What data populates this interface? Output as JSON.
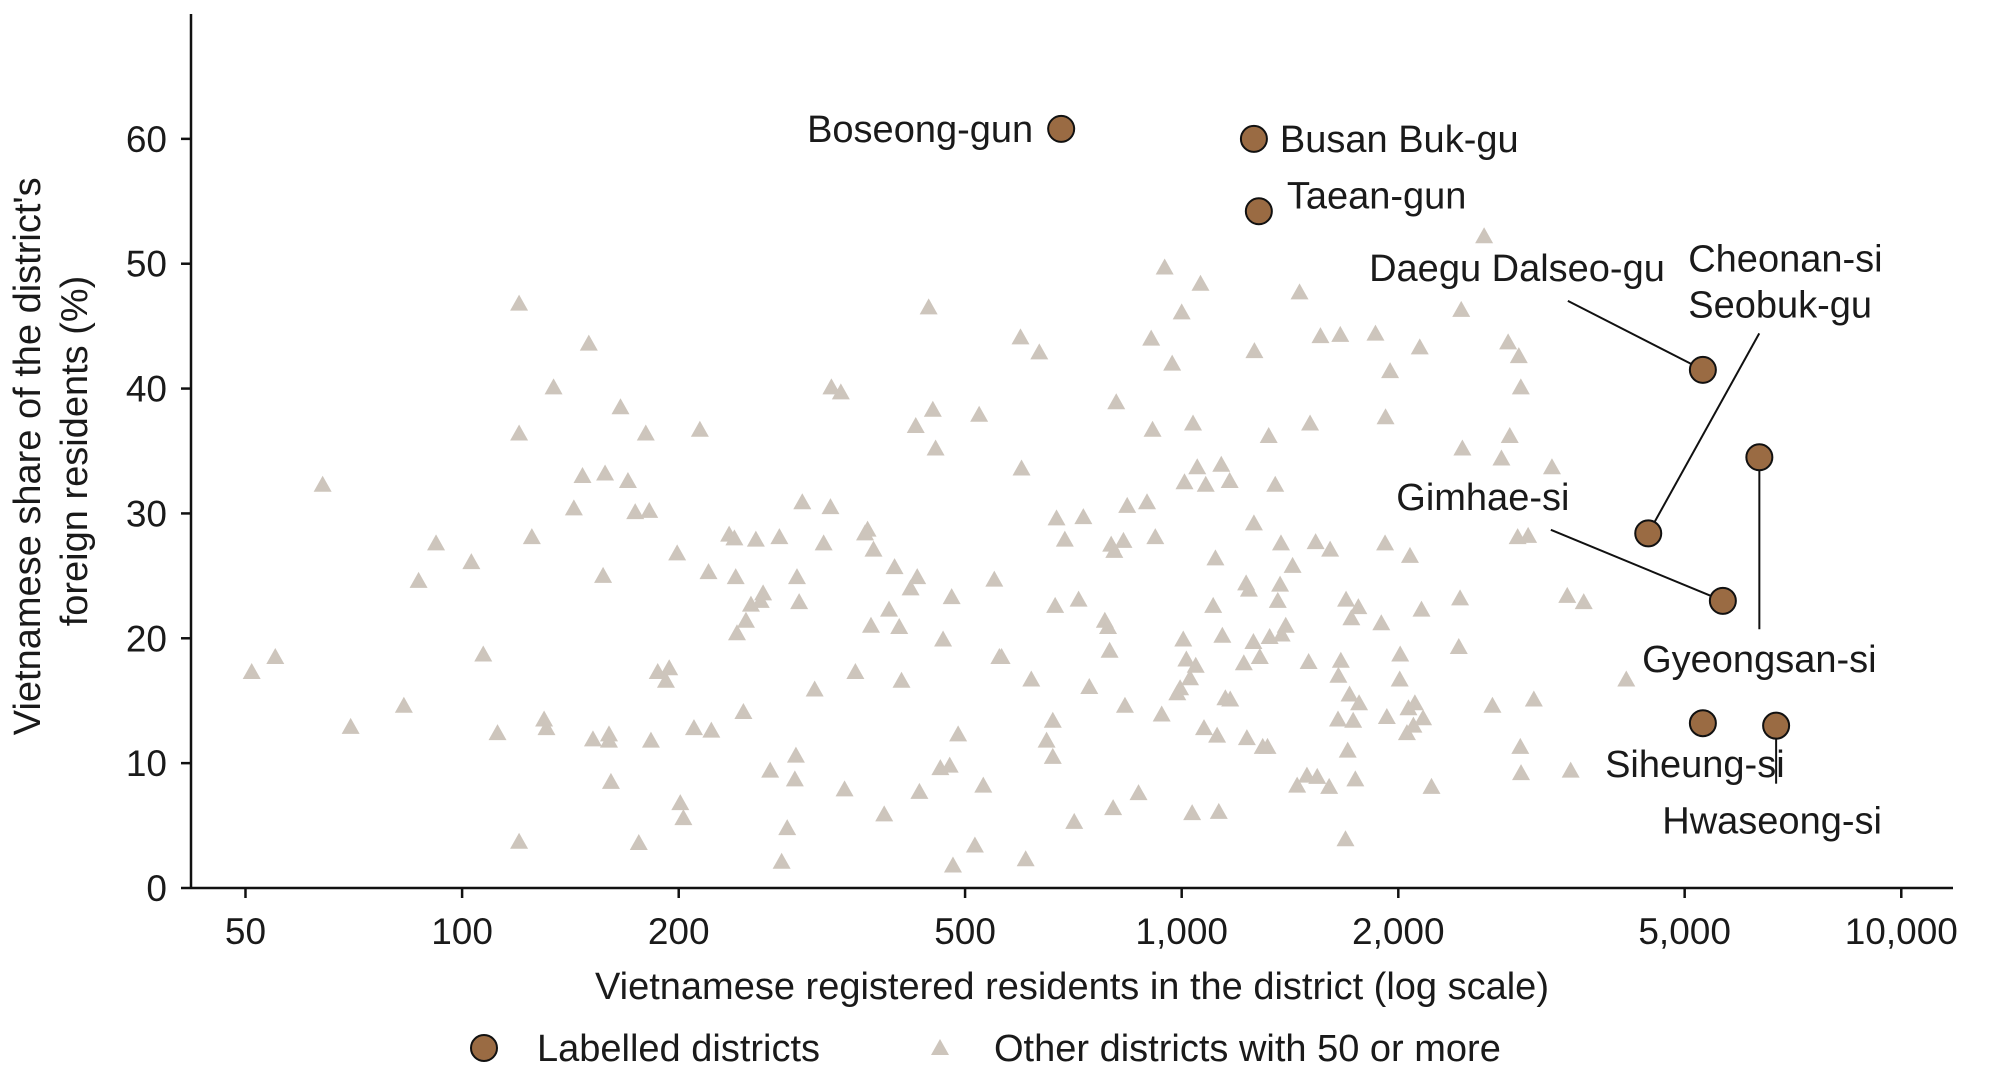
{
  "chart_data": {
    "type": "scatter",
    "xlabel": "Vietnamese registered residents in the district (log scale)",
    "ylabel": [
      "Vietnamese share of the district's",
      "foreign residents (%)"
    ],
    "x_scale": "log",
    "xlim": [
      42,
      11800
    ],
    "ylim": [
      0,
      70
    ],
    "x_ticks": [
      {
        "value": 50,
        "label": "50"
      },
      {
        "value": 100,
        "label": "100"
      },
      {
        "value": 200,
        "label": "200"
      },
      {
        "value": 500,
        "label": "500"
      },
      {
        "value": 1000,
        "label": "1,000"
      },
      {
        "value": 2000,
        "label": "2,000"
      },
      {
        "value": 5000,
        "label": "5,000"
      },
      {
        "value": 10000,
        "label": "10,000"
      }
    ],
    "y_ticks": [
      {
        "value": 0,
        "label": "0"
      },
      {
        "value": 10,
        "label": "10"
      },
      {
        "value": 20,
        "label": "20"
      },
      {
        "value": 30,
        "label": "30"
      },
      {
        "value": 40,
        "label": "40"
      },
      {
        "value": 50,
        "label": "50"
      },
      {
        "value": 60,
        "label": "60"
      }
    ],
    "grid": false,
    "legend": {
      "placement": "bottom",
      "entries": [
        {
          "key": "labelled",
          "label": "Labelled districts",
          "marker": "circle"
        },
        {
          "key": "other",
          "label": "Other districts with 50 or more",
          "marker": "triangle"
        }
      ]
    },
    "colors": {
      "labelled_fill": "#9a6b43",
      "labelled_edge": "#111111",
      "other": "#cdc5bc",
      "text": "#1a1a1a",
      "axis": "#111111"
    },
    "series": [
      {
        "key": "labelled",
        "points": [
          {
            "x": 680,
            "y": 60.8,
            "label": [
              "Boseong-gun"
            ]
          },
          {
            "x": 1260,
            "y": 60.0,
            "label": [
              "Busan Buk-gu"
            ]
          },
          {
            "x": 1280,
            "y": 54.2,
            "label": [
              "Taean-gun"
            ]
          },
          {
            "x": 5300,
            "y": 41.5,
            "label": [
              "Daegu Dalseo-gu"
            ]
          },
          {
            "x": 4450,
            "y": 28.4,
            "label": [
              "Cheonan-si",
              "Seobuk-gu"
            ]
          },
          {
            "x": 6350,
            "y": 34.5,
            "label": [
              "Gyeongsan-si"
            ]
          },
          {
            "x": 5650,
            "y": 23.0,
            "label": [
              "Gimhae-si"
            ]
          },
          {
            "x": 5300,
            "y": 13.2,
            "label": [
              "Siheung-si"
            ]
          },
          {
            "x": 6700,
            "y": 13.0,
            "label": [
              "Hwaseong-si"
            ]
          }
        ]
      },
      {
        "key": "other",
        "points": [
          {
            "x": 51,
            "y": 17.3
          },
          {
            "x": 55,
            "y": 18.5
          },
          {
            "x": 64,
            "y": 32.3
          },
          {
            "x": 70,
            "y": 12.9
          },
          {
            "x": 83,
            "y": 14.6
          },
          {
            "x": 87,
            "y": 24.6
          },
          {
            "x": 92,
            "y": 27.6
          },
          {
            "x": 103,
            "y": 26.1
          },
          {
            "x": 107,
            "y": 18.7
          },
          {
            "x": 112,
            "y": 12.4
          },
          {
            "x": 120,
            "y": 46.8
          },
          {
            "x": 120,
            "y": 36.4
          },
          {
            "x": 120,
            "y": 3.7
          },
          {
            "x": 125,
            "y": 28.1
          },
          {
            "x": 130,
            "y": 13.5
          },
          {
            "x": 131,
            "y": 12.8
          },
          {
            "x": 134,
            "y": 40.1
          },
          {
            "x": 143,
            "y": 30.4
          },
          {
            "x": 147,
            "y": 33.0
          },
          {
            "x": 150,
            "y": 43.6
          },
          {
            "x": 152,
            "y": 11.9
          },
          {
            "x": 157,
            "y": 25.0
          },
          {
            "x": 158,
            "y": 33.2
          },
          {
            "x": 160,
            "y": 12.3
          },
          {
            "x": 160,
            "y": 11.8
          },
          {
            "x": 161,
            "y": 8.5
          },
          {
            "x": 166,
            "y": 38.5
          },
          {
            "x": 170,
            "y": 32.6
          },
          {
            "x": 174,
            "y": 30.1
          },
          {
            "x": 176,
            "y": 3.6
          },
          {
            "x": 180,
            "y": 36.4
          },
          {
            "x": 182,
            "y": 30.2
          },
          {
            "x": 183,
            "y": 11.8
          },
          {
            "x": 187,
            "y": 17.3
          },
          {
            "x": 192,
            "y": 16.6
          },
          {
            "x": 194,
            "y": 17.6
          },
          {
            "x": 199,
            "y": 26.8
          },
          {
            "x": 201,
            "y": 6.8
          },
          {
            "x": 203,
            "y": 5.6
          },
          {
            "x": 210,
            "y": 12.8
          },
          {
            "x": 214,
            "y": 36.7
          },
          {
            "x": 220,
            "y": 25.3
          },
          {
            "x": 222,
            "y": 12.6
          },
          {
            "x": 235,
            "y": 28.3
          },
          {
            "x": 239,
            "y": 28.0
          },
          {
            "x": 240,
            "y": 24.9
          },
          {
            "x": 241,
            "y": 20.4
          },
          {
            "x": 246,
            "y": 14.1
          },
          {
            "x": 248,
            "y": 21.4
          },
          {
            "x": 252,
            "y": 22.7
          },
          {
            "x": 256,
            "y": 27.9
          },
          {
            "x": 260,
            "y": 23.0
          },
          {
            "x": 262,
            "y": 23.6
          },
          {
            "x": 268,
            "y": 9.4
          },
          {
            "x": 276,
            "y": 28.1
          },
          {
            "x": 278,
            "y": 2.1
          },
          {
            "x": 283,
            "y": 4.8
          },
          {
            "x": 290,
            "y": 8.7
          },
          {
            "x": 291,
            "y": 10.6
          },
          {
            "x": 292,
            "y": 24.9
          },
          {
            "x": 294,
            "y": 22.9
          },
          {
            "x": 297,
            "y": 30.9
          },
          {
            "x": 309,
            "y": 15.9
          },
          {
            "x": 318,
            "y": 27.6
          },
          {
            "x": 325,
            "y": 30.5
          },
          {
            "x": 326,
            "y": 40.1
          },
          {
            "x": 336,
            "y": 39.7
          },
          {
            "x": 340,
            "y": 7.9
          },
          {
            "x": 352,
            "y": 17.3
          },
          {
            "x": 363,
            "y": 28.4
          },
          {
            "x": 366,
            "y": 28.7
          },
          {
            "x": 370,
            "y": 21.0
          },
          {
            "x": 373,
            "y": 27.1
          },
          {
            "x": 386,
            "y": 5.9
          },
          {
            "x": 392,
            "y": 22.3
          },
          {
            "x": 399,
            "y": 25.7
          },
          {
            "x": 405,
            "y": 20.9
          },
          {
            "x": 408,
            "y": 16.6
          },
          {
            "x": 420,
            "y": 24.0
          },
          {
            "x": 427,
            "y": 37.0
          },
          {
            "x": 429,
            "y": 24.9
          },
          {
            "x": 432,
            "y": 7.7
          },
          {
            "x": 445,
            "y": 46.5
          },
          {
            "x": 451,
            "y": 38.3
          },
          {
            "x": 455,
            "y": 35.2
          },
          {
            "x": 462,
            "y": 9.6
          },
          {
            "x": 466,
            "y": 19.9
          },
          {
            "x": 476,
            "y": 9.8
          },
          {
            "x": 479,
            "y": 23.3
          },
          {
            "x": 481,
            "y": 1.8
          },
          {
            "x": 489,
            "y": 12.3
          },
          {
            "x": 516,
            "y": 3.4
          },
          {
            "x": 523,
            "y": 37.9
          },
          {
            "x": 530,
            "y": 8.2
          },
          {
            "x": 549,
            "y": 24.7
          },
          {
            "x": 558,
            "y": 18.5
          },
          {
            "x": 562,
            "y": 18.5
          },
          {
            "x": 597,
            "y": 44.1
          },
          {
            "x": 599,
            "y": 33.6
          },
          {
            "x": 607,
            "y": 2.3
          },
          {
            "x": 618,
            "y": 16.7
          },
          {
            "x": 634,
            "y": 42.9
          },
          {
            "x": 649,
            "y": 11.8
          },
          {
            "x": 662,
            "y": 13.4
          },
          {
            "x": 662,
            "y": 10.5
          },
          {
            "x": 667,
            "y": 22.6
          },
          {
            "x": 670,
            "y": 29.6
          },
          {
            "x": 688,
            "y": 27.9
          },
          {
            "x": 709,
            "y": 5.3
          },
          {
            "x": 719,
            "y": 23.1
          },
          {
            "x": 730,
            "y": 29.7
          },
          {
            "x": 744,
            "y": 16.1
          },
          {
            "x": 782,
            "y": 21.4
          },
          {
            "x": 790,
            "y": 20.9
          },
          {
            "x": 794,
            "y": 19.0
          },
          {
            "x": 798,
            "y": 27.5
          },
          {
            "x": 803,
            "y": 6.4
          },
          {
            "x": 806,
            "y": 27.0
          },
          {
            "x": 811,
            "y": 38.9
          },
          {
            "x": 830,
            "y": 27.8
          },
          {
            "x": 834,
            "y": 14.6
          },
          {
            "x": 840,
            "y": 30.6
          },
          {
            "x": 871,
            "y": 7.6
          },
          {
            "x": 895,
            "y": 30.9
          },
          {
            "x": 907,
            "y": 44.0
          },
          {
            "x": 911,
            "y": 36.7
          },
          {
            "x": 919,
            "y": 28.1
          },
          {
            "x": 938,
            "y": 13.9
          },
          {
            "x": 947,
            "y": 49.7
          },
          {
            "x": 970,
            "y": 42.0
          },
          {
            "x": 986,
            "y": 15.6
          },
          {
            "x": 995,
            "y": 16.0
          },
          {
            "x": 1000,
            "y": 46.1
          },
          {
            "x": 1005,
            "y": 19.9
          },
          {
            "x": 1009,
            "y": 32.5
          },
          {
            "x": 1015,
            "y": 18.3
          },
          {
            "x": 1027,
            "y": 16.8
          },
          {
            "x": 1034,
            "y": 6.0
          },
          {
            "x": 1037,
            "y": 37.2
          },
          {
            "x": 1046,
            "y": 17.8
          },
          {
            "x": 1051,
            "y": 33.7
          },
          {
            "x": 1062,
            "y": 48.4
          },
          {
            "x": 1074,
            "y": 12.8
          },
          {
            "x": 1080,
            "y": 32.3
          },
          {
            "x": 1106,
            "y": 22.6
          },
          {
            "x": 1114,
            "y": 26.4
          },
          {
            "x": 1120,
            "y": 12.2
          },
          {
            "x": 1126,
            "y": 6.1
          },
          {
            "x": 1135,
            "y": 33.9
          },
          {
            "x": 1139,
            "y": 20.2
          },
          {
            "x": 1150,
            "y": 15.2
          },
          {
            "x": 1166,
            "y": 32.6
          },
          {
            "x": 1168,
            "y": 15.1
          },
          {
            "x": 1220,
            "y": 18.0
          },
          {
            "x": 1229,
            "y": 24.4
          },
          {
            "x": 1232,
            "y": 12.0
          },
          {
            "x": 1240,
            "y": 23.9
          },
          {
            "x": 1258,
            "y": 19.7
          },
          {
            "x": 1260,
            "y": 29.2
          },
          {
            "x": 1262,
            "y": 43.0
          },
          {
            "x": 1284,
            "y": 18.5
          },
          {
            "x": 1296,
            "y": 11.3
          },
          {
            "x": 1316,
            "y": 11.3
          },
          {
            "x": 1321,
            "y": 36.2
          },
          {
            "x": 1325,
            "y": 20.1
          },
          {
            "x": 1349,
            "y": 32.3
          },
          {
            "x": 1360,
            "y": 23.0
          },
          {
            "x": 1370,
            "y": 24.3
          },
          {
            "x": 1374,
            "y": 27.6
          },
          {
            "x": 1377,
            "y": 20.3
          },
          {
            "x": 1395,
            "y": 21.0
          },
          {
            "x": 1426,
            "y": 25.8
          },
          {
            "x": 1447,
            "y": 8.2
          },
          {
            "x": 1458,
            "y": 47.7
          },
          {
            "x": 1493,
            "y": 9.0
          },
          {
            "x": 1501,
            "y": 18.1
          },
          {
            "x": 1508,
            "y": 37.2
          },
          {
            "x": 1535,
            "y": 27.7
          },
          {
            "x": 1543,
            "y": 8.9
          },
          {
            "x": 1559,
            "y": 44.2
          },
          {
            "x": 1603,
            "y": 8.1
          },
          {
            "x": 1608,
            "y": 27.1
          },
          {
            "x": 1649,
            "y": 13.5
          },
          {
            "x": 1651,
            "y": 17.0
          },
          {
            "x": 1661,
            "y": 44.3
          },
          {
            "x": 1664,
            "y": 18.2
          },
          {
            "x": 1689,
            "y": 3.9
          },
          {
            "x": 1692,
            "y": 23.1
          },
          {
            "x": 1701,
            "y": 11.0
          },
          {
            "x": 1711,
            "y": 15.5
          },
          {
            "x": 1721,
            "y": 21.6
          },
          {
            "x": 1731,
            "y": 13.4
          },
          {
            "x": 1743,
            "y": 8.7
          },
          {
            "x": 1760,
            "y": 22.5
          },
          {
            "x": 1764,
            "y": 14.8
          },
          {
            "x": 1859,
            "y": 44.4
          },
          {
            "x": 1894,
            "y": 21.2
          },
          {
            "x": 1917,
            "y": 27.6
          },
          {
            "x": 1920,
            "y": 37.7
          },
          {
            "x": 1928,
            "y": 13.7
          },
          {
            "x": 1948,
            "y": 41.4
          },
          {
            "x": 2009,
            "y": 16.7
          },
          {
            "x": 2012,
            "y": 18.7
          },
          {
            "x": 2056,
            "y": 12.4
          },
          {
            "x": 2066,
            "y": 14.4
          },
          {
            "x": 2076,
            "y": 26.6
          },
          {
            "x": 2099,
            "y": 13.0
          },
          {
            "x": 2109,
            "y": 14.8
          },
          {
            "x": 2142,
            "y": 43.3
          },
          {
            "x": 2154,
            "y": 22.3
          },
          {
            "x": 2165,
            "y": 13.6
          },
          {
            "x": 2224,
            "y": 8.1
          },
          {
            "x": 2427,
            "y": 19.3
          },
          {
            "x": 2437,
            "y": 23.2
          },
          {
            "x": 2446,
            "y": 46.3
          },
          {
            "x": 2455,
            "y": 35.2
          },
          {
            "x": 2632,
            "y": 52.2
          },
          {
            "x": 2703,
            "y": 14.6
          },
          {
            "x": 2782,
            "y": 34.4
          },
          {
            "x": 2842,
            "y": 43.7
          },
          {
            "x": 2857,
            "y": 36.2
          },
          {
            "x": 2930,
            "y": 28.1
          },
          {
            "x": 2941,
            "y": 42.6
          },
          {
            "x": 2955,
            "y": 11.3
          },
          {
            "x": 2960,
            "y": 40.1
          },
          {
            "x": 2962,
            "y": 9.2
          },
          {
            "x": 3030,
            "y": 28.2
          },
          {
            "x": 3086,
            "y": 15.1
          },
          {
            "x": 3270,
            "y": 33.7
          },
          {
            "x": 3434,
            "y": 23.4
          },
          {
            "x": 3472,
            "y": 9.4
          },
          {
            "x": 3620,
            "y": 22.9
          },
          {
            "x": 4148,
            "y": 16.7
          }
        ]
      }
    ]
  }
}
